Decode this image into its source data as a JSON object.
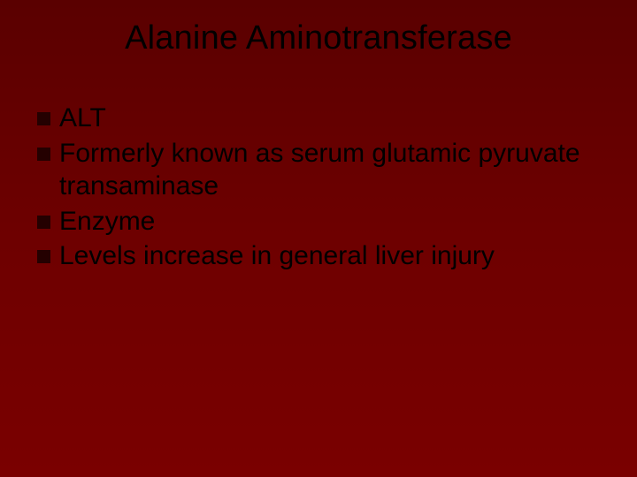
{
  "slide": {
    "title": "Alanine Aminotransferase",
    "background_gradient_top": "#5a0000",
    "background_gradient_mid": "#6e0000",
    "background_gradient_bottom": "#7a0000",
    "title_color": "#000000",
    "title_fontsize": 38,
    "body_color": "#000000",
    "body_fontsize": 30,
    "bullet_color": "#240000",
    "bullet_size": 15,
    "bullets": [
      {
        "text": "ALT"
      },
      {
        "text": "Formerly known as serum glutamic pyruvate transaminase"
      },
      {
        "text": "Enzyme"
      },
      {
        "text": "Levels increase in general liver injury"
      }
    ]
  }
}
